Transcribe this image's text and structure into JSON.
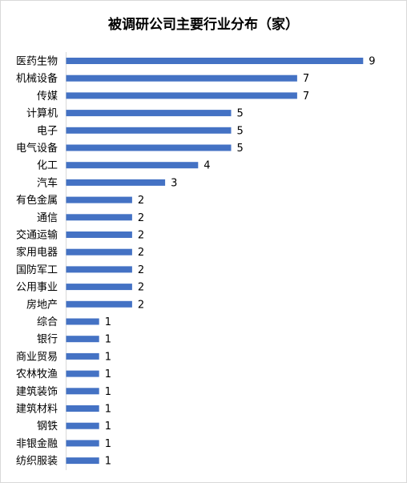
{
  "chart_data": {
    "type": "bar",
    "orientation": "horizontal",
    "title": "被调研公司主要行业分布（家）",
    "categories": [
      "医药生物",
      "机械设备",
      "传媒",
      "计算机",
      "电子",
      "电气设备",
      "化工",
      "汽车",
      "有色金属",
      "通信",
      "交通运输",
      "家用电器",
      "国防军工",
      "公用事业",
      "房地产",
      "综合",
      "银行",
      "商业贸易",
      "农林牧渔",
      "建筑装饰",
      "建筑材料",
      "钢铁",
      "非银金融",
      "纺织服装"
    ],
    "values": [
      9,
      7,
      7,
      5,
      5,
      5,
      4,
      3,
      2,
      2,
      2,
      2,
      2,
      2,
      2,
      1,
      1,
      1,
      1,
      1,
      1,
      1,
      1,
      1
    ],
    "color": "#4472c4",
    "xlim": [
      0,
      10
    ]
  }
}
